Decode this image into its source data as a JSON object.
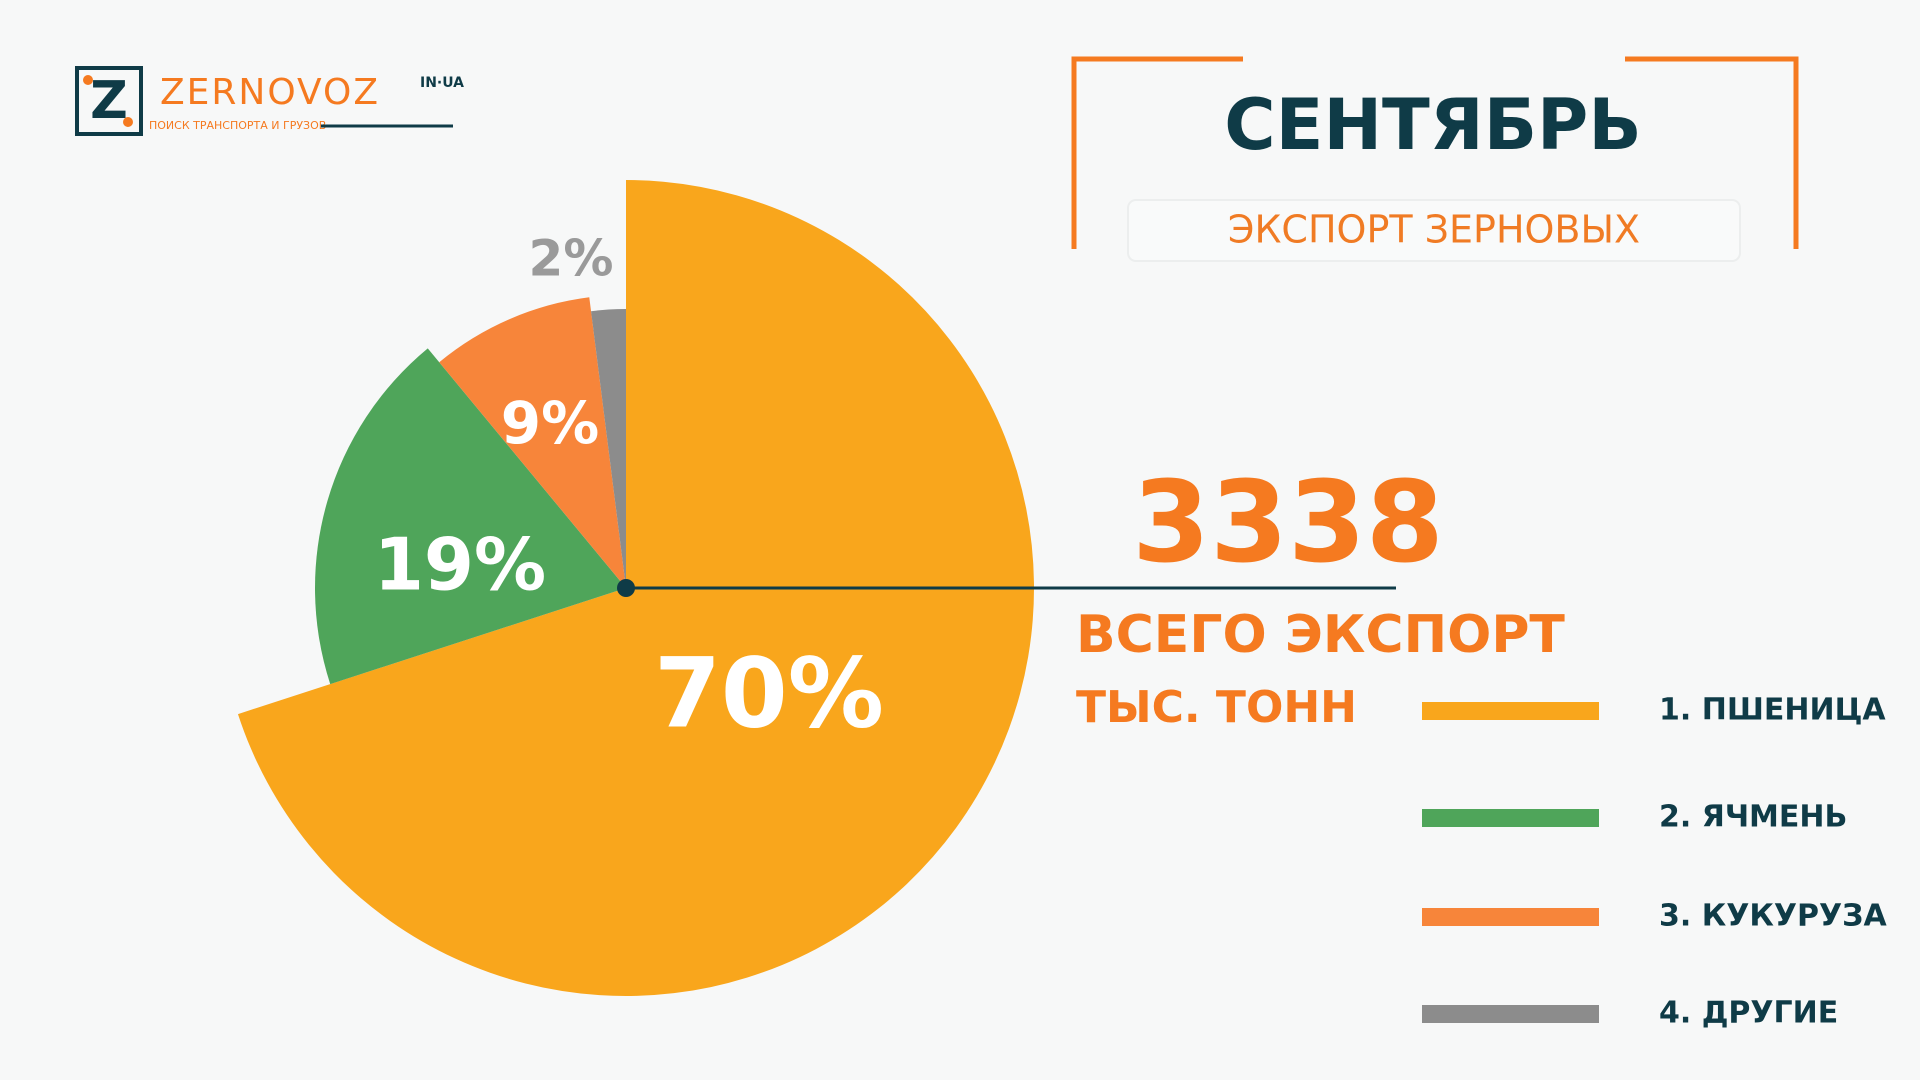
{
  "chart_data": {
    "type": "pie",
    "title": "СЕНТЯБРЬ",
    "subtitle": "ЭКСПОРТ ЗЕРНОВЫХ",
    "total": 3338,
    "total_label": "ВСЕГО ЭКСПОРТ",
    "unit": "ТЫС. ТОНН",
    "series": [
      {
        "name": "1. ПШЕНИЦА",
        "color": "#f9a61c",
        "values": [
          70
        ],
        "value_labels": [
          "70%"
        ]
      },
      {
        "name": "2. ЯЧМЕНЬ",
        "color": "#4fa55a",
        "values": [
          19
        ],
        "value_labels": [
          "19%"
        ]
      },
      {
        "name": "3. КУКУРУЗА",
        "color": "#f7853a",
        "values": [
          9
        ],
        "value_labels": [
          "9%"
        ]
      },
      {
        "name": "4. ДРУГИЕ",
        "color": "#8c8c8c",
        "values": [
          2
        ],
        "value_labels": [
          "2%"
        ]
      }
    ]
  },
  "logo": {
    "mark": "Z",
    "name": "ZERNOVOZ",
    "domain": "IN·UA",
    "tagline": "ПОИСК ТРАНСПОРТА И ГРУЗОВ"
  }
}
